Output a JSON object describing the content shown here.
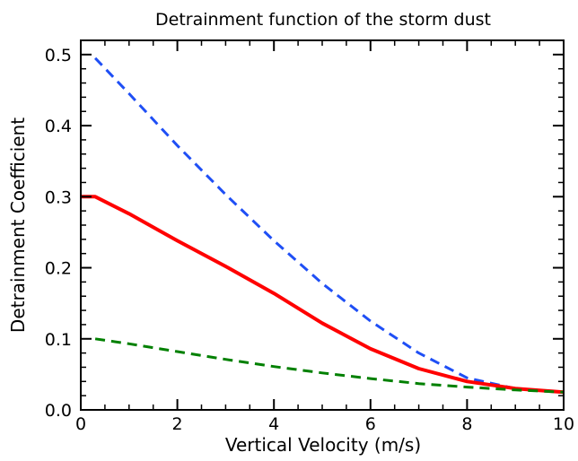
{
  "chart_data": {
    "type": "line",
    "title": "Detrainment function of the storm dust",
    "xlabel": "Vertical Velocity (m/s)",
    "ylabel": "Detrainment Coefficient",
    "xlim": [
      0,
      10
    ],
    "ylim": [
      0,
      0.52
    ],
    "xticks": [
      0,
      2,
      4,
      6,
      8,
      10
    ],
    "yticks": [
      0.0,
      0.1,
      0.2,
      0.3,
      0.4,
      0.5
    ],
    "xtick_labels": [
      "0",
      "2",
      "4",
      "6",
      "8",
      "10"
    ],
    "ytick_labels": [
      "0.0",
      "0.1",
      "0.2",
      "0.3",
      "0.4",
      "0.5"
    ],
    "x_minor_step": 0.5,
    "y_minor_step": 0.02,
    "grid": false,
    "series": [
      {
        "style": "dashed",
        "color": "#1f4ff5",
        "x": [
          0.3,
          1,
          2,
          3,
          4,
          5,
          6,
          7,
          8,
          9,
          10
        ],
        "y": [
          0.495,
          0.445,
          0.372,
          0.303,
          0.238,
          0.178,
          0.125,
          0.08,
          0.045,
          0.03,
          0.025
        ]
      },
      {
        "style": "solid",
        "color": "#ff0000",
        "x": [
          0,
          0.3,
          1,
          2,
          3,
          4,
          5,
          6,
          7,
          8,
          9,
          10
        ],
        "y": [
          0.3,
          0.3,
          0.276,
          0.238,
          0.202,
          0.164,
          0.122,
          0.086,
          0.058,
          0.04,
          0.03,
          0.025
        ]
      },
      {
        "style": "dashed",
        "color": "#008000",
        "x": [
          0.3,
          1,
          2,
          3,
          4,
          5,
          6,
          7,
          8,
          9,
          10
        ],
        "y": [
          0.1,
          0.093,
          0.082,
          0.071,
          0.061,
          0.052,
          0.044,
          0.037,
          0.032,
          0.028,
          0.025
        ]
      }
    ]
  }
}
